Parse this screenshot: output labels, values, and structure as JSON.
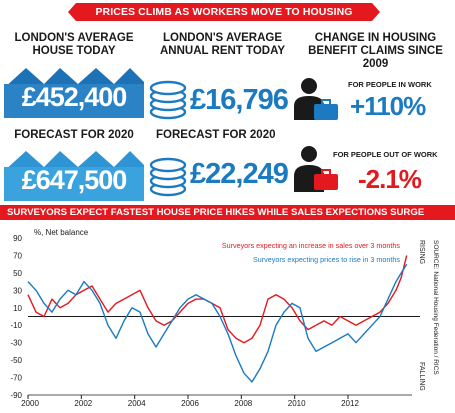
{
  "banner": "PRICES CLIMB AS WORKERS MOVE TO HOUSING BENEFIT",
  "house": {
    "title_l1": "LONDON'S AVERAGE",
    "title_l2": "HOUSE TODAY",
    "value": "£452,400",
    "forecast_label": "FORECAST FOR 2020",
    "forecast_value": "£647,500"
  },
  "rent": {
    "title_l1": "LONDON'S AVERAGE",
    "title_l2": "ANNUAL RENT TODAY",
    "value": "£16,796",
    "forecast_label": "FORECAST FOR 2020",
    "forecast_value": "£22,249"
  },
  "claims": {
    "title_l1": "CHANGE IN HOUSING",
    "title_l2": "BENEFIT CLAIMS SINCE 2009",
    "in_work_label": "FOR PEOPLE IN WORK",
    "in_work_value": "+110%",
    "out_work_label": "FOR PEOPLE OUT OF WORK",
    "out_work_value": "-2.1%"
  },
  "colors": {
    "accent_red": "#e3191f",
    "accent_blue": "#1b7ac0",
    "house_blue": "#2b83c6",
    "house_light": "#3aa3dd"
  },
  "icons": [
    "house-icon",
    "coin-stack-icon",
    "worker-briefcase-icon"
  ],
  "chart_title": "SURVEYORS EXPECT FASTEST HOUSE PRICE HIKES WHILE SALES EXPECTIONS SURGE",
  "chart_data": {
    "type": "line",
    "ylabel": "%, Net balance",
    "ylim": [
      -90,
      90
    ],
    "xlim": [
      2000,
      2014.4
    ],
    "yticks": [
      90,
      70,
      50,
      30,
      10,
      -10,
      -30,
      -50,
      -70,
      -90
    ],
    "xticks": [
      2000,
      2002,
      2004,
      2006,
      2008,
      2010,
      2012
    ],
    "rising_label": "RISING",
    "falling_label": "FALLING",
    "source": "SOURCE: National Housing Federation / RICS",
    "series": [
      {
        "name": "Surveyors expecting an increase in sales over 3 months",
        "color": "#e3191f",
        "x": [
          2000.0,
          2000.3,
          2000.6,
          2000.9,
          2001.2,
          2001.5,
          2001.8,
          2002.1,
          2002.4,
          2002.7,
          2003.0,
          2003.3,
          2003.6,
          2003.9,
          2004.2,
          2004.5,
          2004.8,
          2005.1,
          2005.4,
          2005.7,
          2006.0,
          2006.3,
          2006.6,
          2006.9,
          2007.2,
          2007.5,
          2007.8,
          2008.1,
          2008.4,
          2008.7,
          2009.0,
          2009.3,
          2009.6,
          2009.9,
          2010.2,
          2010.5,
          2010.8,
          2011.1,
          2011.4,
          2011.7,
          2012.0,
          2012.3,
          2012.6,
          2012.9,
          2013.2,
          2013.5,
          2013.8,
          2014.0,
          2014.2
        ],
        "y": [
          25,
          5,
          0,
          20,
          10,
          15,
          25,
          30,
          35,
          20,
          5,
          15,
          20,
          25,
          30,
          10,
          -5,
          -10,
          -5,
          5,
          15,
          20,
          20,
          15,
          10,
          -15,
          -25,
          -30,
          -25,
          -10,
          20,
          25,
          20,
          10,
          -5,
          -15,
          -10,
          -5,
          -10,
          0,
          -5,
          -10,
          -5,
          0,
          5,
          15,
          30,
          45,
          70
        ]
      },
      {
        "name": "Surveyors expecting prices to rise in 3 months",
        "color": "#1b7ac0",
        "x": [
          2000.0,
          2000.3,
          2000.6,
          2000.9,
          2001.2,
          2001.5,
          2001.8,
          2002.1,
          2002.4,
          2002.7,
          2003.0,
          2003.3,
          2003.6,
          2003.9,
          2004.2,
          2004.5,
          2004.8,
          2005.1,
          2005.4,
          2005.7,
          2006.0,
          2006.3,
          2006.6,
          2006.9,
          2007.2,
          2007.5,
          2007.8,
          2008.1,
          2008.4,
          2008.7,
          2009.0,
          2009.3,
          2009.6,
          2009.9,
          2010.2,
          2010.5,
          2010.8,
          2011.1,
          2011.4,
          2011.7,
          2012.0,
          2012.3,
          2012.6,
          2012.9,
          2013.2,
          2013.5,
          2013.8,
          2014.0,
          2014.2
        ],
        "y": [
          40,
          30,
          15,
          5,
          20,
          30,
          25,
          40,
          30,
          15,
          -10,
          -25,
          -5,
          10,
          5,
          -20,
          -35,
          -20,
          -5,
          10,
          20,
          25,
          20,
          15,
          0,
          -20,
          -45,
          -65,
          -75,
          -60,
          -40,
          -10,
          5,
          15,
          10,
          -25,
          -40,
          -35,
          -30,
          -25,
          -20,
          -30,
          -20,
          -10,
          0,
          20,
          40,
          50,
          60
        ]
      }
    ]
  }
}
